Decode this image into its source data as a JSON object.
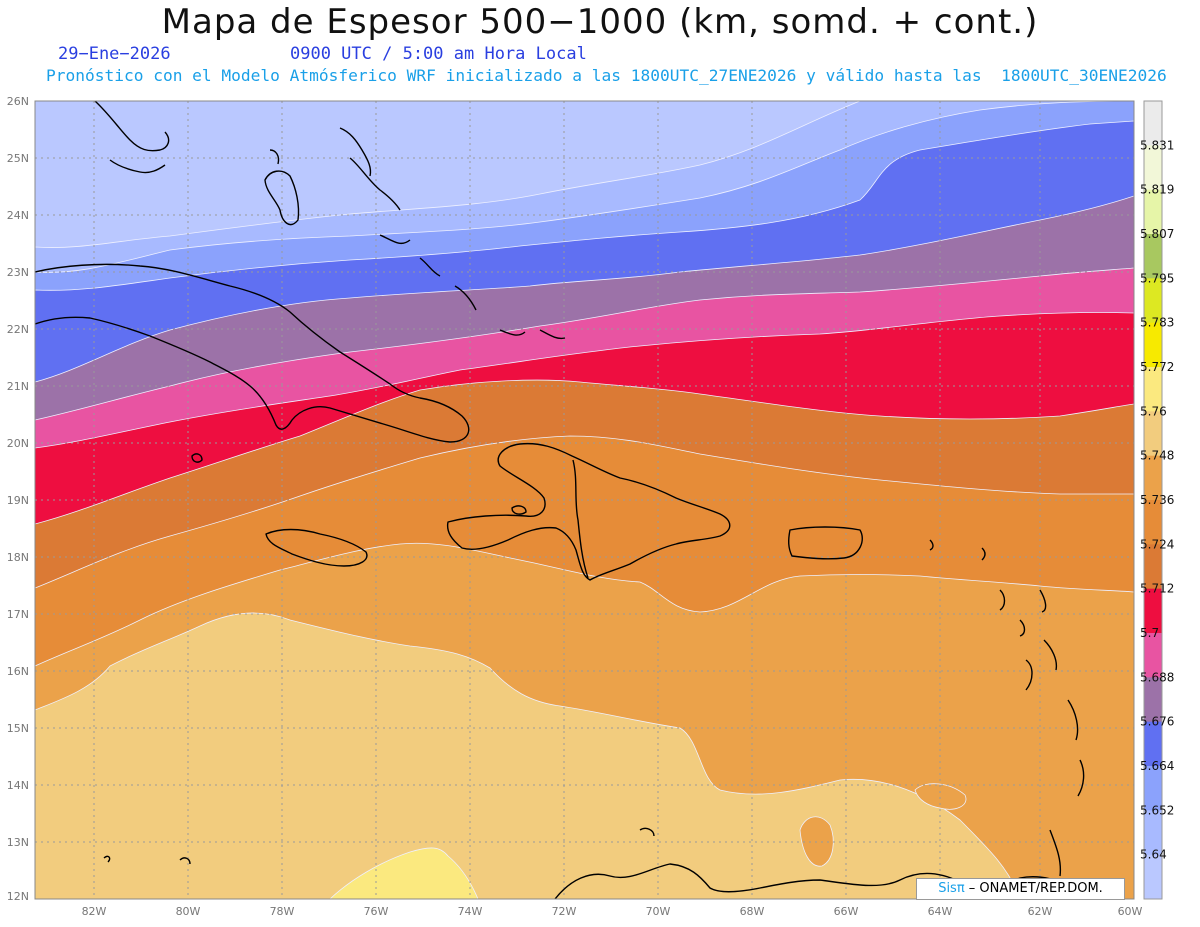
{
  "title": "Mapa de Espesor 500−1000 (km, somd. + cont.)",
  "date_label": "29−Ene−2026",
  "time_label": "0900 UTC / 5:00 am Hora Local",
  "forecast_label": "Pronóstico con el Modelo Atmósferico WRF inicializado a las 1800UTC_27ENE2026 y válido hasta las  1800UTC_30ENE2026",
  "map": {
    "lon_range": [
      -83.2,
      -60
    ],
    "lat_range": [
      12,
      26
    ],
    "lat_ticks": [
      "26N",
      "25N",
      "24N",
      "23N",
      "22N",
      "21N",
      "20N",
      "19N",
      "18N",
      "17N",
      "16N",
      "15N",
      "14N",
      "13N",
      "12N"
    ],
    "lon_ticks": [
      "82W",
      "80W",
      "78W",
      "76W",
      "74W",
      "72W",
      "70W",
      "68W",
      "66W",
      "64W",
      "62W",
      "60W"
    ],
    "grid": true
  },
  "colorbar": {
    "labels": [
      "5.831",
      "5.819",
      "5.807",
      "5.795",
      "5.783",
      "5.772",
      "5.76",
      "5.748",
      "5.736",
      "5.724",
      "5.712",
      "5.7",
      "5.688",
      "5.676",
      "5.664",
      "5.652",
      "5.64"
    ],
    "colors_top_to_bottom": [
      "#ebebeb",
      "#f2f7d8",
      "#e6f5a8",
      "#a8c860",
      "#dde822",
      "#f7ea00",
      "#fbe97f",
      "#f2cc7e",
      "#eba24a",
      "#e68c38",
      "#db7a35",
      "#ee0e40",
      "#e854a2",
      "#9c72a8",
      "#6070f2",
      "#8ba2fc",
      "#a8baff",
      "#bac8ff"
    ]
  },
  "credit": {
    "sis": "Sisπ",
    "rest": " –  ONAMET/REP.DOM."
  }
}
